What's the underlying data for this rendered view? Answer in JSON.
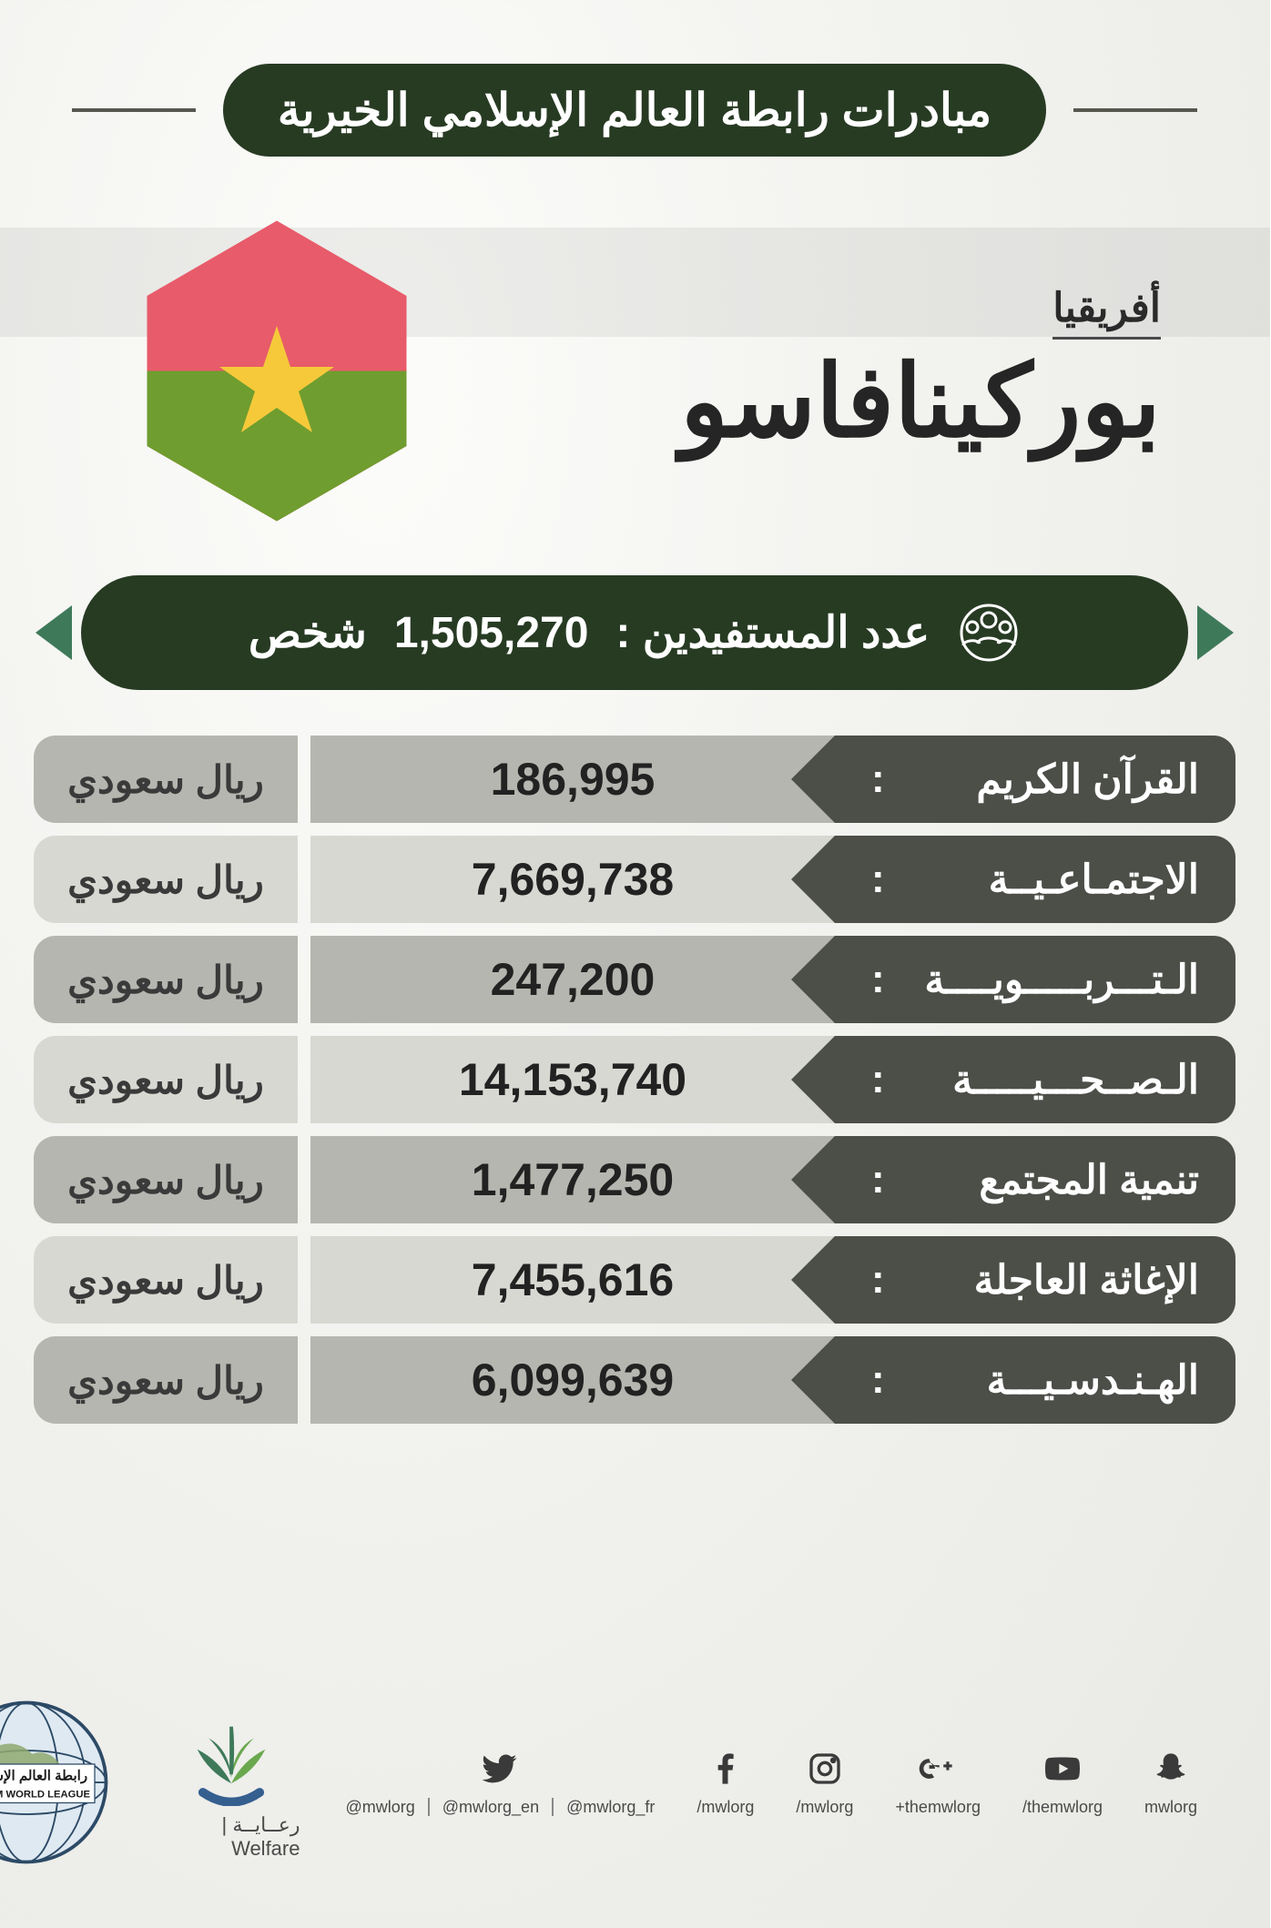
{
  "colors": {
    "pill_bg": "#273b23",
    "pill_text": "#ffffff",
    "title_line": "#56584f",
    "row_label_bg": "#4c4e48",
    "row_label_text": "#ffffff",
    "row_bg_a": "#b6b6b0",
    "row_bg_b": "#d8d8d3",
    "value_text": "#222222",
    "unit_text": "#3a3a3a",
    "arrow_green": "#3e7a5a",
    "flag_red": "#e85b6a",
    "flag_green": "#6f9d2f",
    "flag_star": "#f5c93a",
    "body_text": "#252525"
  },
  "typography": {
    "title_fontsize": 50,
    "continent_fontsize": 44,
    "country_fontsize": 110,
    "benef_fontsize": 48,
    "row_label_fontsize": 44,
    "row_value_fontsize": 50,
    "row_unit_fontsize": 42,
    "social_handle_fontsize": 18
  },
  "header": {
    "title": "مبادرات رابطة العالم الإسلامي الخيرية"
  },
  "location": {
    "continent": "أفريقيا",
    "country": "بوركينافاسو"
  },
  "beneficiaries": {
    "label": "عدد المستفيدين :",
    "value": "1,505,270",
    "unit": "شخص"
  },
  "currency_unit": "ريال سعودي",
  "rows": [
    {
      "label": "القرآن الكريم",
      "value": "186,995"
    },
    {
      "label": "الاجتمـاعـيــة",
      "value": "7,669,738"
    },
    {
      "label": "الـتـــربـــــويــــة",
      "value": "247,200"
    },
    {
      "label": "الـصــحـــيـــــة",
      "value": "14,153,740"
    },
    {
      "label": "تنمية المجتمع",
      "value": "1,477,250"
    },
    {
      "label": "الإغاثة العاجلة",
      "value": "7,455,616"
    },
    {
      "label": "الهـنـدسـيـــة",
      "value": "6,099,639"
    }
  ],
  "social": [
    {
      "icon": "twitter",
      "handles": [
        "@mwlorg",
        "@mwlorg_en",
        "@mwlorg_fr"
      ]
    },
    {
      "icon": "facebook",
      "handles": [
        "/mwlorg"
      ]
    },
    {
      "icon": "instagram",
      "handles": [
        "/mwlorg"
      ]
    },
    {
      "icon": "googleplus",
      "handles": [
        "+themwlorg"
      ]
    },
    {
      "icon": "youtube",
      "handles": [
        "/themwlorg"
      ]
    },
    {
      "icon": "snapchat",
      "handles": [
        "mwlorg"
      ]
    }
  ],
  "welfare": {
    "label": "رعــايــة  |  Welfare"
  },
  "org": {
    "name_ar": "رابطة العالم الإسلامي",
    "name_en": "MUSLIM WORLD LEAGUE"
  }
}
